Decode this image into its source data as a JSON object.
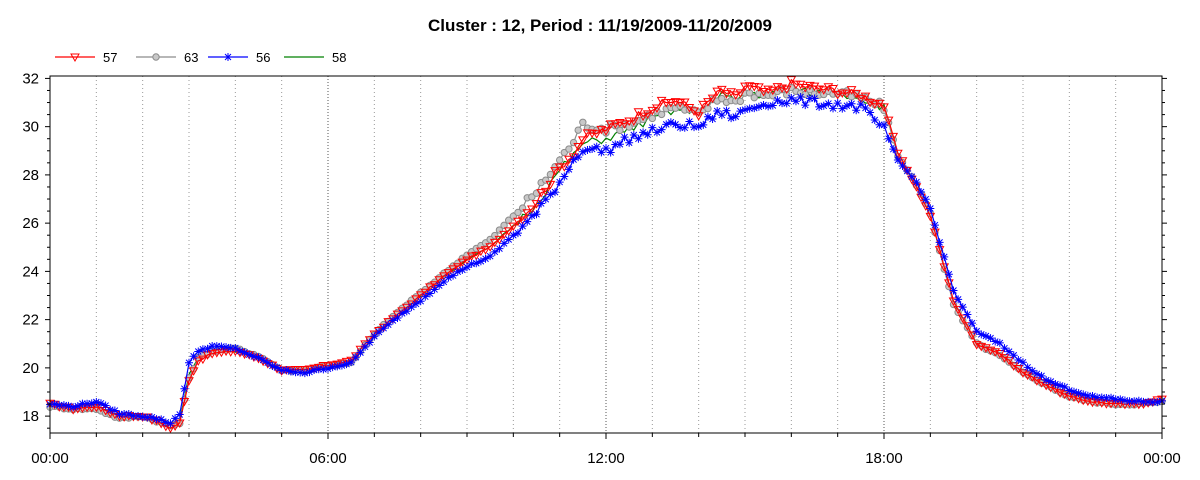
{
  "chart_data": {
    "type": "line",
    "title": "Cluster : 12, Period : 11/19/2009-11/20/2009",
    "xlabel": "",
    "ylabel": "",
    "x_ticks": [
      "00:00",
      "06:00",
      "12:00",
      "18:00",
      "00:00"
    ],
    "xlim_hours": [
      0,
      24
    ],
    "ylim": [
      17.3,
      32.1
    ],
    "y_ticks": [
      18,
      20,
      22,
      24,
      26,
      28,
      30,
      32
    ],
    "grid": "vertical dotted",
    "legend_position": "top-left",
    "series": [
      {
        "name": "57",
        "color": "#ff0000",
        "marker": "triangle-down",
        "x": [
          0,
          0.5,
          1,
          1.5,
          2,
          2.3,
          2.6,
          2.8,
          3,
          3.2,
          3.5,
          4,
          4.5,
          5,
          5.5,
          6,
          6.5,
          7,
          7.5,
          8,
          8.5,
          9,
          9.5,
          10,
          10.5,
          11,
          11.3,
          11.5,
          12,
          12.5,
          13,
          13.5,
          14,
          14.3,
          14.5,
          14.8,
          15,
          15.5,
          16,
          16.5,
          17,
          17.5,
          18,
          18.3,
          18.7,
          19,
          19.5,
          20,
          20.5,
          21,
          21.5,
          22,
          22.5,
          23,
          23.5,
          24
        ],
        "y": [
          18.5,
          18.3,
          18.4,
          18.0,
          18.0,
          17.8,
          17.5,
          17.7,
          19.5,
          20.3,
          20.6,
          20.7,
          20.4,
          19.9,
          19.9,
          20.1,
          20.3,
          21.4,
          22.2,
          23.0,
          23.8,
          24.5,
          25.0,
          25.9,
          26.9,
          28.3,
          28.9,
          29.5,
          29.9,
          30.3,
          30.8,
          31.1,
          30.6,
          31.2,
          31.5,
          31.2,
          31.7,
          31.4,
          31.8,
          31.6,
          31.5,
          31.3,
          30.9,
          28.9,
          27.5,
          26.3,
          22.8,
          21.0,
          20.6,
          19.8,
          19.3,
          18.8,
          18.6,
          18.5,
          18.5,
          18.7
        ]
      },
      {
        "name": "63",
        "color": "#8c8c8c",
        "marker": "circle",
        "x": [
          0,
          0.5,
          1,
          1.5,
          2,
          2.3,
          2.6,
          2.8,
          3,
          3.2,
          3.5,
          4,
          4.5,
          5,
          5.5,
          6,
          6.5,
          7,
          7.5,
          8,
          8.5,
          9,
          9.5,
          10,
          10.5,
          11,
          11.3,
          11.5,
          12,
          12.5,
          13,
          13.5,
          14,
          14.3,
          14.5,
          14.8,
          15,
          15.5,
          16,
          16.5,
          17,
          17.5,
          18,
          18.3,
          18.7,
          19,
          19.5,
          20,
          20.5,
          21,
          21.5,
          22,
          22.5,
          23,
          23.5,
          24
        ],
        "y": [
          18.4,
          18.3,
          18.3,
          17.9,
          18.0,
          17.8,
          17.6,
          17.7,
          19.6,
          20.4,
          20.7,
          20.8,
          20.5,
          19.9,
          19.9,
          20.1,
          20.2,
          21.4,
          22.3,
          23.1,
          23.9,
          24.7,
          25.3,
          26.3,
          27.3,
          28.6,
          29.4,
          30.1,
          29.9,
          30.1,
          30.5,
          30.8,
          30.5,
          31.0,
          31.2,
          31.0,
          31.4,
          31.3,
          31.5,
          31.4,
          31.4,
          31.2,
          30.8,
          28.8,
          27.6,
          26.4,
          22.6,
          21.0,
          20.5,
          19.8,
          19.3,
          18.8,
          18.6,
          18.5,
          18.5,
          18.6
        ]
      },
      {
        "name": "56",
        "color": "#0000ff",
        "marker": "asterisk",
        "x": [
          0,
          0.5,
          1,
          1.5,
          2,
          2.3,
          2.6,
          2.8,
          3,
          3.2,
          3.5,
          4,
          4.5,
          5,
          5.5,
          6,
          6.5,
          7,
          7.5,
          8,
          8.5,
          9,
          9.5,
          10,
          10.5,
          11,
          11.3,
          11.5,
          12,
          12.5,
          13,
          13.5,
          14,
          14.3,
          14.5,
          14.8,
          15,
          15.5,
          16,
          16.5,
          17,
          17.5,
          18,
          18.3,
          18.7,
          19,
          19.5,
          20,
          20.5,
          21,
          21.5,
          22,
          22.5,
          23,
          23.5,
          24
        ],
        "y": [
          18.5,
          18.4,
          18.6,
          18.1,
          18.0,
          17.9,
          17.7,
          18.1,
          20.2,
          20.7,
          20.9,
          20.8,
          20.4,
          19.9,
          19.8,
          20.0,
          20.2,
          21.3,
          22.1,
          22.8,
          23.6,
          24.2,
          24.6,
          25.5,
          26.4,
          27.7,
          28.6,
          29.1,
          29.0,
          29.5,
          29.8,
          30.1,
          30.0,
          30.4,
          30.6,
          30.4,
          30.7,
          31.0,
          31.1,
          31.0,
          30.9,
          30.8,
          29.9,
          28.6,
          27.7,
          26.6,
          23.2,
          21.5,
          21.0,
          20.2,
          19.5,
          19.1,
          18.8,
          18.7,
          18.6,
          18.6
        ]
      },
      {
        "name": "58",
        "color": "#008000",
        "marker": "none",
        "x": [
          0,
          0.5,
          1,
          1.5,
          2,
          2.3,
          2.6,
          2.8,
          3,
          3.2,
          3.5,
          4,
          4.5,
          5,
          5.5,
          6,
          6.5,
          7,
          7.5,
          8,
          8.5,
          9,
          9.5,
          10,
          10.5,
          11,
          11.3,
          11.5,
          12,
          12.5,
          13,
          13.5,
          14,
          14.3,
          14.5,
          14.8,
          15,
          15.5,
          16,
          16.5,
          17,
          17.5,
          18,
          18.3,
          18.7,
          19,
          19.5,
          20,
          20.5,
          21,
          21.5,
          22,
          22.5,
          23,
          23.5,
          24
        ],
        "y": [
          18.4,
          18.3,
          18.4,
          18.0,
          18.0,
          17.8,
          17.6,
          17.8,
          19.7,
          20.4,
          20.7,
          20.7,
          20.4,
          19.9,
          19.9,
          20.1,
          20.2,
          21.4,
          22.2,
          23.0,
          23.8,
          24.5,
          25.0,
          25.9,
          26.8,
          28.2,
          28.8,
          29.3,
          29.5,
          29.9,
          30.3,
          30.7,
          30.6,
          31.0,
          31.3,
          31.1,
          31.4,
          31.3,
          31.5,
          31.4,
          31.4,
          31.2,
          30.8,
          28.8,
          27.5,
          26.3,
          22.7,
          21.0,
          20.6,
          19.8,
          19.3,
          18.8,
          18.6,
          18.5,
          18.5,
          18.6
        ]
      }
    ]
  }
}
